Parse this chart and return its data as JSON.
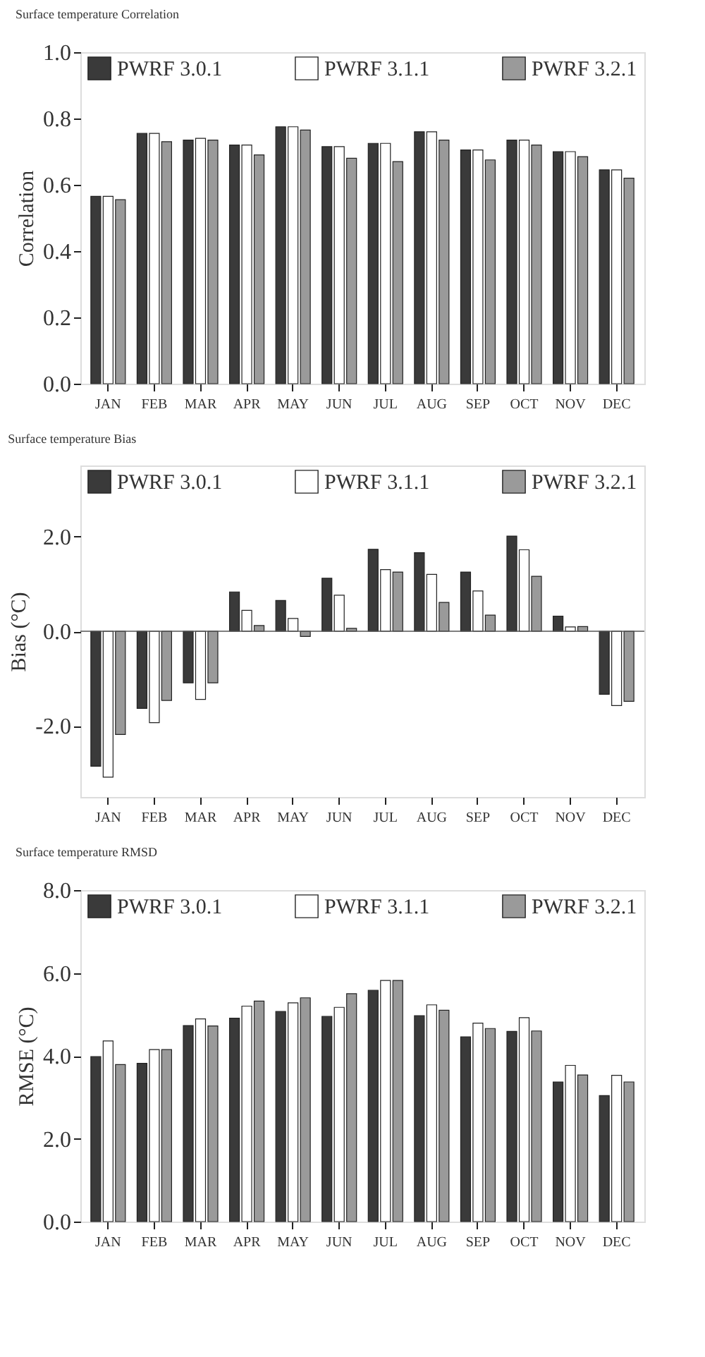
{
  "chart_data": [
    {
      "type": "bar",
      "title": "Surface temperature Correlation",
      "ylabel": "Correlation",
      "categories": [
        "JAN",
        "FEB",
        "MAR",
        "APR",
        "MAY",
        "JUN",
        "JUL",
        "AUG",
        "SEP",
        "OCT",
        "NOV",
        "DEC"
      ],
      "series": [
        {
          "name": "PWRF 3.0.1",
          "color": "#3a3a3a",
          "values": [
            0.565,
            0.755,
            0.735,
            0.72,
            0.775,
            0.715,
            0.725,
            0.76,
            0.705,
            0.735,
            0.7,
            0.645
          ]
        },
        {
          "name": "PWRF 3.1.1",
          "color": "#ffffff",
          "values": [
            0.565,
            0.755,
            0.74,
            0.72,
            0.775,
            0.715,
            0.725,
            0.76,
            0.705,
            0.735,
            0.7,
            0.645
          ]
        },
        {
          "name": "PWRF 3.2.1",
          "color": "#9a9a9a",
          "values": [
            0.555,
            0.73,
            0.735,
            0.69,
            0.765,
            0.68,
            0.67,
            0.735,
            0.675,
            0.72,
            0.685,
            0.62
          ]
        }
      ],
      "ylim": [
        0,
        1
      ],
      "yticks": [
        {
          "value": 0,
          "label": "0.0"
        },
        0.2,
        0.4,
        0.6,
        0.8,
        {
          "value": 1,
          "label": "1.0"
        }
      ],
      "grid": false,
      "legend": "top"
    },
    {
      "type": "bar",
      "title": "Surface temperature Bias",
      "ylabel": "Bias (°C)",
      "categories": [
        "JAN",
        "FEB",
        "MAR",
        "APR",
        "MAY",
        "JUN",
        "JUL",
        "AUG",
        "SEP",
        "OCT",
        "NOV",
        "DEC"
      ],
      "series": [
        {
          "name": "PWRF 3.0.1",
          "color": "#3a3a3a",
          "values": [
            -2.85,
            -1.63,
            -1.09,
            0.83,
            0.65,
            1.12,
            1.73,
            1.66,
            1.25,
            2.01,
            0.32,
            -1.33
          ]
        },
        {
          "name": "PWRF 3.1.1",
          "color": "#ffffff",
          "values": [
            -3.08,
            -1.93,
            -1.44,
            0.44,
            0.27,
            0.76,
            1.3,
            1.2,
            0.85,
            1.72,
            0.09,
            -1.57
          ]
        },
        {
          "name": "PWRF 3.2.1",
          "color": "#9a9a9a",
          "values": [
            -2.18,
            -1.46,
            -1.09,
            0.12,
            -0.11,
            0.06,
            1.25,
            0.61,
            0.34,
            1.16,
            0.1,
            -1.48
          ]
        }
      ],
      "ylim": [
        -3.5,
        3.5
      ],
      "yticks": [
        {
          "value": -2,
          "label": "-2.0"
        },
        {
          "value": 0,
          "label": "0.0"
        },
        {
          "value": 2,
          "label": "2.0"
        }
      ],
      "ref_lines": [
        {
          "axis": "y",
          "value": 0,
          "color": "#555555"
        }
      ],
      "grid": false,
      "legend": "top"
    },
    {
      "type": "bar",
      "title": "Surface temperature RMSD",
      "ylabel": "RMSE (°C)",
      "categories": [
        "JAN",
        "FEB",
        "MAR",
        "APR",
        "MAY",
        "JUN",
        "JUL",
        "AUG",
        "SEP",
        "OCT",
        "NOV",
        "DEC"
      ],
      "series": [
        {
          "name": "PWRF 3.0.1",
          "color": "#3a3a3a",
          "values": [
            3.98,
            3.82,
            4.73,
            4.91,
            5.07,
            4.95,
            5.58,
            4.97,
            4.46,
            4.59,
            3.37,
            3.04
          ]
        },
        {
          "name": "PWRF 3.1.1",
          "color": "#ffffff",
          "values": [
            4.36,
            4.15,
            4.89,
            5.2,
            5.28,
            5.17,
            5.82,
            5.23,
            4.79,
            4.92,
            3.77,
            3.53
          ]
        },
        {
          "name": "PWRF 3.2.1",
          "color": "#9a9a9a",
          "values": [
            3.79,
            4.15,
            4.72,
            5.32,
            5.4,
            5.5,
            5.82,
            5.1,
            4.66,
            4.6,
            3.54,
            3.37
          ]
        }
      ],
      "ylim": [
        0,
        8
      ],
      "yticks": [
        {
          "value": 0,
          "label": "0.0"
        },
        {
          "value": 2,
          "label": "2.0"
        },
        {
          "value": 4,
          "label": "4.0"
        },
        {
          "value": 6,
          "label": "6.0"
        },
        {
          "value": 8,
          "label": "8.0"
        }
      ],
      "grid": false,
      "legend": "top"
    }
  ]
}
